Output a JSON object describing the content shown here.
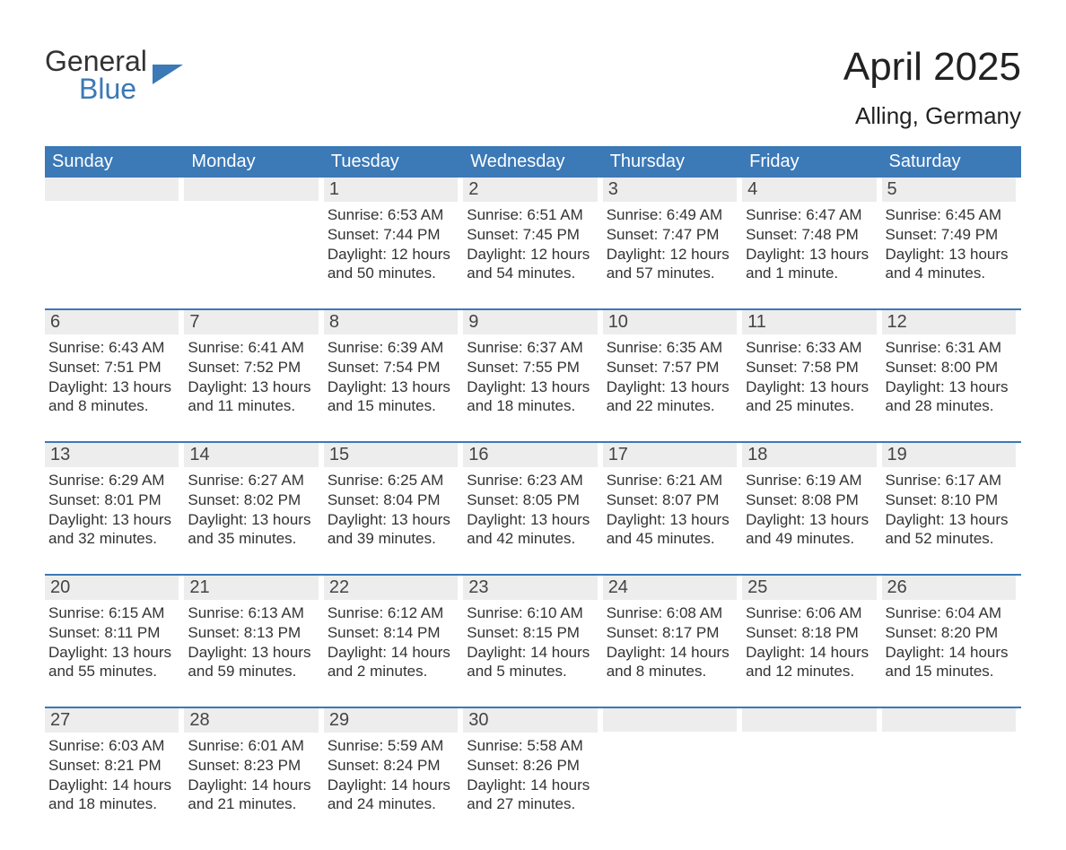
{
  "colors": {
    "header_bg": "#3b79b7",
    "header_text": "#ffffff",
    "daynum_bg": "#ededed",
    "text": "#333333",
    "week_divider": "#3b79b7",
    "page_bg": "#ffffff",
    "logo_blue": "#3b79b7"
  },
  "typography": {
    "title_fontsize": 44,
    "location_fontsize": 26,
    "dayname_fontsize": 20,
    "daynum_fontsize": 20,
    "body_fontsize": 17
  },
  "logo": {
    "text1": "General",
    "text2": "Blue"
  },
  "title": "April 2025",
  "location": "Alling, Germany",
  "calendar": {
    "type": "table",
    "daynames": [
      "Sunday",
      "Monday",
      "Tuesday",
      "Wednesday",
      "Thursday",
      "Friday",
      "Saturday"
    ],
    "weeks": [
      [
        {
          "day": "",
          "sunrise": "",
          "sunset": "",
          "daylight": ""
        },
        {
          "day": "",
          "sunrise": "",
          "sunset": "",
          "daylight": ""
        },
        {
          "day": "1",
          "sunrise": "Sunrise: 6:53 AM",
          "sunset": "Sunset: 7:44 PM",
          "daylight": "Daylight: 12 hours and 50 minutes."
        },
        {
          "day": "2",
          "sunrise": "Sunrise: 6:51 AM",
          "sunset": "Sunset: 7:45 PM",
          "daylight": "Daylight: 12 hours and 54 minutes."
        },
        {
          "day": "3",
          "sunrise": "Sunrise: 6:49 AM",
          "sunset": "Sunset: 7:47 PM",
          "daylight": "Daylight: 12 hours and 57 minutes."
        },
        {
          "day": "4",
          "sunrise": "Sunrise: 6:47 AM",
          "sunset": "Sunset: 7:48 PM",
          "daylight": "Daylight: 13 hours and 1 minute."
        },
        {
          "day": "5",
          "sunrise": "Sunrise: 6:45 AM",
          "sunset": "Sunset: 7:49 PM",
          "daylight": "Daylight: 13 hours and 4 minutes."
        }
      ],
      [
        {
          "day": "6",
          "sunrise": "Sunrise: 6:43 AM",
          "sunset": "Sunset: 7:51 PM",
          "daylight": "Daylight: 13 hours and 8 minutes."
        },
        {
          "day": "7",
          "sunrise": "Sunrise: 6:41 AM",
          "sunset": "Sunset: 7:52 PM",
          "daylight": "Daylight: 13 hours and 11 minutes."
        },
        {
          "day": "8",
          "sunrise": "Sunrise: 6:39 AM",
          "sunset": "Sunset: 7:54 PM",
          "daylight": "Daylight: 13 hours and 15 minutes."
        },
        {
          "day": "9",
          "sunrise": "Sunrise: 6:37 AM",
          "sunset": "Sunset: 7:55 PM",
          "daylight": "Daylight: 13 hours and 18 minutes."
        },
        {
          "day": "10",
          "sunrise": "Sunrise: 6:35 AM",
          "sunset": "Sunset: 7:57 PM",
          "daylight": "Daylight: 13 hours and 22 minutes."
        },
        {
          "day": "11",
          "sunrise": "Sunrise: 6:33 AM",
          "sunset": "Sunset: 7:58 PM",
          "daylight": "Daylight: 13 hours and 25 minutes."
        },
        {
          "day": "12",
          "sunrise": "Sunrise: 6:31 AM",
          "sunset": "Sunset: 8:00 PM",
          "daylight": "Daylight: 13 hours and 28 minutes."
        }
      ],
      [
        {
          "day": "13",
          "sunrise": "Sunrise: 6:29 AM",
          "sunset": "Sunset: 8:01 PM",
          "daylight": "Daylight: 13 hours and 32 minutes."
        },
        {
          "day": "14",
          "sunrise": "Sunrise: 6:27 AM",
          "sunset": "Sunset: 8:02 PM",
          "daylight": "Daylight: 13 hours and 35 minutes."
        },
        {
          "day": "15",
          "sunrise": "Sunrise: 6:25 AM",
          "sunset": "Sunset: 8:04 PM",
          "daylight": "Daylight: 13 hours and 39 minutes."
        },
        {
          "day": "16",
          "sunrise": "Sunrise: 6:23 AM",
          "sunset": "Sunset: 8:05 PM",
          "daylight": "Daylight: 13 hours and 42 minutes."
        },
        {
          "day": "17",
          "sunrise": "Sunrise: 6:21 AM",
          "sunset": "Sunset: 8:07 PM",
          "daylight": "Daylight: 13 hours and 45 minutes."
        },
        {
          "day": "18",
          "sunrise": "Sunrise: 6:19 AM",
          "sunset": "Sunset: 8:08 PM",
          "daylight": "Daylight: 13 hours and 49 minutes."
        },
        {
          "day": "19",
          "sunrise": "Sunrise: 6:17 AM",
          "sunset": "Sunset: 8:10 PM",
          "daylight": "Daylight: 13 hours and 52 minutes."
        }
      ],
      [
        {
          "day": "20",
          "sunrise": "Sunrise: 6:15 AM",
          "sunset": "Sunset: 8:11 PM",
          "daylight": "Daylight: 13 hours and 55 minutes."
        },
        {
          "day": "21",
          "sunrise": "Sunrise: 6:13 AM",
          "sunset": "Sunset: 8:13 PM",
          "daylight": "Daylight: 13 hours and 59 minutes."
        },
        {
          "day": "22",
          "sunrise": "Sunrise: 6:12 AM",
          "sunset": "Sunset: 8:14 PM",
          "daylight": "Daylight: 14 hours and 2 minutes."
        },
        {
          "day": "23",
          "sunrise": "Sunrise: 6:10 AM",
          "sunset": "Sunset: 8:15 PM",
          "daylight": "Daylight: 14 hours and 5 minutes."
        },
        {
          "day": "24",
          "sunrise": "Sunrise: 6:08 AM",
          "sunset": "Sunset: 8:17 PM",
          "daylight": "Daylight: 14 hours and 8 minutes."
        },
        {
          "day": "25",
          "sunrise": "Sunrise: 6:06 AM",
          "sunset": "Sunset: 8:18 PM",
          "daylight": "Daylight: 14 hours and 12 minutes."
        },
        {
          "day": "26",
          "sunrise": "Sunrise: 6:04 AM",
          "sunset": "Sunset: 8:20 PM",
          "daylight": "Daylight: 14 hours and 15 minutes."
        }
      ],
      [
        {
          "day": "27",
          "sunrise": "Sunrise: 6:03 AM",
          "sunset": "Sunset: 8:21 PM",
          "daylight": "Daylight: 14 hours and 18 minutes."
        },
        {
          "day": "28",
          "sunrise": "Sunrise: 6:01 AM",
          "sunset": "Sunset: 8:23 PM",
          "daylight": "Daylight: 14 hours and 21 minutes."
        },
        {
          "day": "29",
          "sunrise": "Sunrise: 5:59 AM",
          "sunset": "Sunset: 8:24 PM",
          "daylight": "Daylight: 14 hours and 24 minutes."
        },
        {
          "day": "30",
          "sunrise": "Sunrise: 5:58 AM",
          "sunset": "Sunset: 8:26 PM",
          "daylight": "Daylight: 14 hours and 27 minutes."
        },
        {
          "day": "",
          "sunrise": "",
          "sunset": "",
          "daylight": ""
        },
        {
          "day": "",
          "sunrise": "",
          "sunset": "",
          "daylight": ""
        },
        {
          "day": "",
          "sunrise": "",
          "sunset": "",
          "daylight": ""
        }
      ]
    ]
  }
}
